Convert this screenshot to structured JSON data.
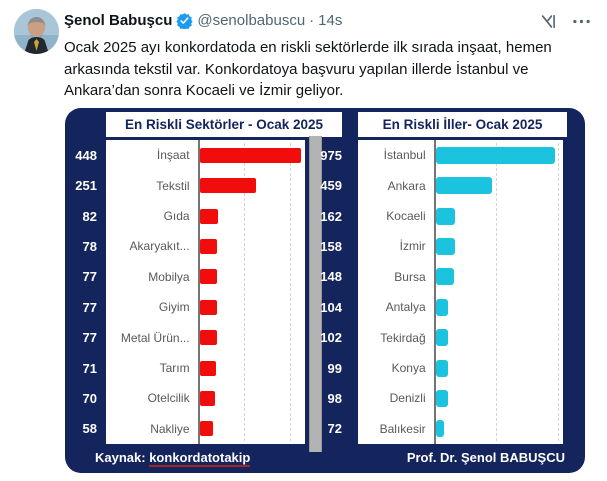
{
  "post": {
    "author_name": "Şenol Babuşcu",
    "handle": "@senolbabuscu",
    "separator": "·",
    "timestamp": "14s",
    "body_lines": [
      "Ocak 2025 ayı konkordatoda en riskli sektörlerde ilk sırada inşaat, hemen",
      "arkasında tekstil var. Konkordatoya başvuru yapılan illerde İstanbul ve",
      "Ankara’dan sonra Kocaeli ve İzmir geliyor."
    ],
    "accent_colors": {
      "verified_badge": "#1d9bf0",
      "icon_gray": "#536471"
    }
  },
  "image_card": {
    "background_color": "#14245c",
    "source_prefix": "Kaynak: ",
    "source_name": "konkordatotakip",
    "credit": "Prof. Dr. Şenol BABUŞCU"
  },
  "chart_data": [
    {
      "type": "bar",
      "orientation": "horizontal",
      "title": "En Riskli Sektörler - Ocak 2025",
      "categories": [
        "İnşaat",
        "Tekstil",
        "Gıda",
        "Akaryakıt...",
        "Mobilya",
        "Giyim",
        "Metal Ürün...",
        "Tarım",
        "Otelcilik",
        "Nakliye"
      ],
      "values": [
        448,
        251,
        82,
        78,
        77,
        77,
        77,
        71,
        70,
        58
      ],
      "bar_color": "#f20d0d",
      "xlim": [
        0,
        465
      ],
      "gridlines": [
        200,
        400
      ],
      "legend": "none",
      "value_labels_position": "left-of-chart"
    },
    {
      "type": "bar",
      "orientation": "horizontal",
      "title": "En Riskli İller- Ocak 2025",
      "categories": [
        "İstanbul",
        "Ankara",
        "Kocaeli",
        "İzmir",
        "Bursa",
        "Antalya",
        "Tekirdağ",
        "Konya",
        "Denizli",
        "Balıkesir"
      ],
      "values": [
        975,
        459,
        162,
        158,
        148,
        104,
        102,
        99,
        98,
        72
      ],
      "bar_color": "#1cc3de",
      "xlim": [
        0,
        1040
      ],
      "gridlines": [
        500,
        1000
      ],
      "legend": "none",
      "value_labels_position": "left-of-chart"
    }
  ]
}
